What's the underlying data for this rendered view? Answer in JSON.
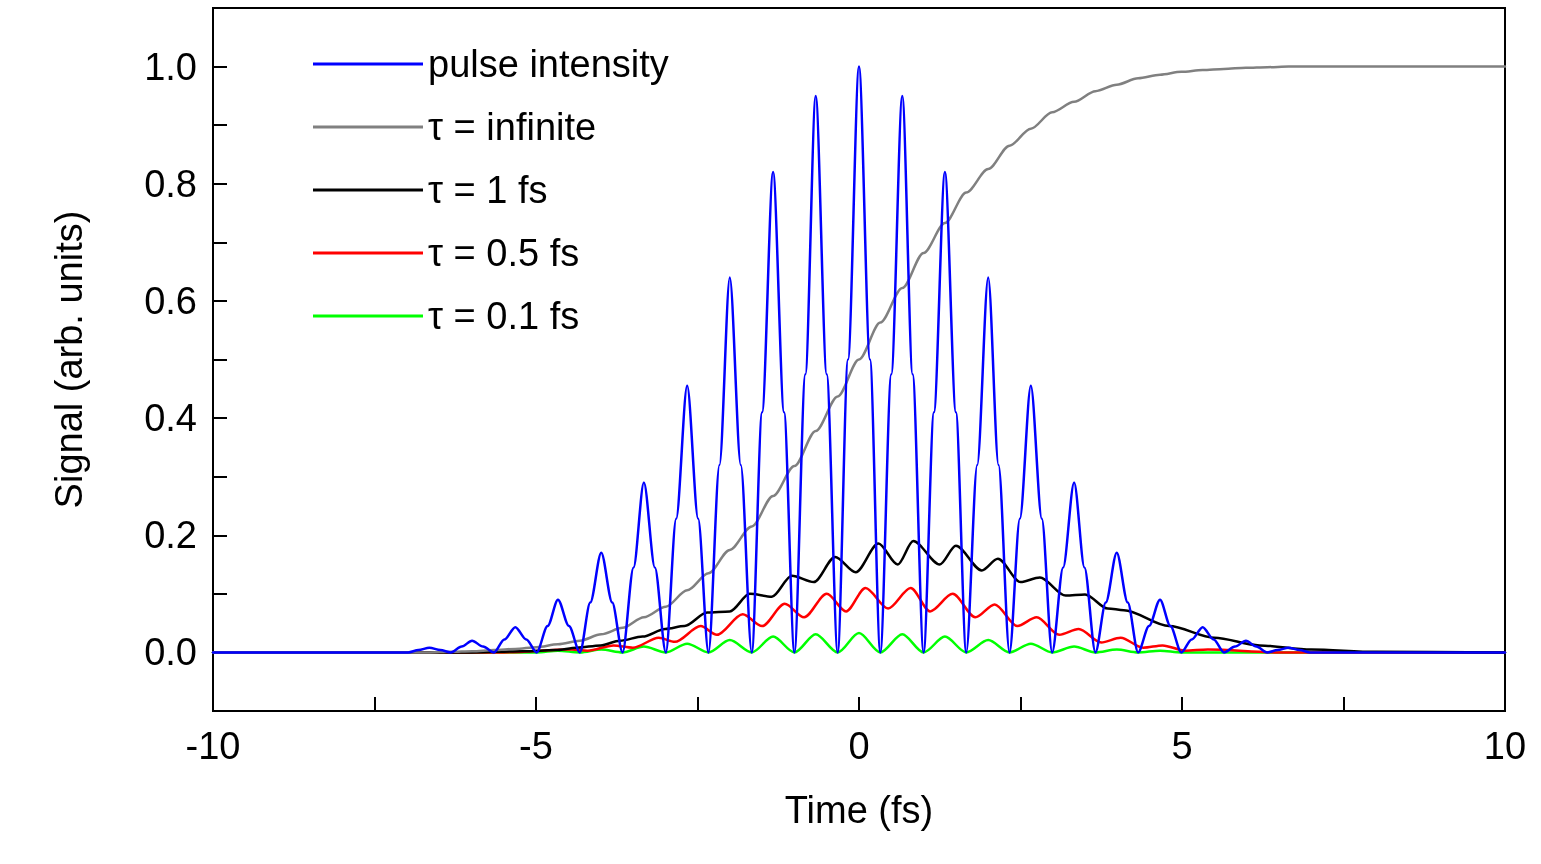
{
  "chart_data": {
    "type": "line",
    "xlabel": "Time (fs)",
    "ylabel": "Signal (arb. units)",
    "xlim": [
      -10,
      10
    ],
    "ylim": [
      -0.1,
      1.1
    ],
    "xticks": [
      -10,
      {
        "value": -7.5,
        "label": null
      },
      -5,
      {
        "value": -2.5,
        "label": null
      },
      0,
      {
        "value": 2.5,
        "label": null
      },
      5,
      {
        "value": 7.5,
        "label": null
      },
      10
    ],
    "yticks": [
      {
        "value": 0,
        "label": "0.0"
      },
      {
        "value": 0.1,
        "label": null
      },
      {
        "value": 0.2,
        "label": "0.2"
      },
      {
        "value": 0.3,
        "label": null
      },
      {
        "value": 0.4,
        "label": "0.4"
      },
      {
        "value": 0.5,
        "label": null
      },
      {
        "value": 0.6,
        "label": "0.6"
      },
      {
        "value": 0.7,
        "label": null
      },
      {
        "value": 0.8,
        "label": "0.8"
      },
      {
        "value": 0.9,
        "label": null
      },
      {
        "value": 1.0,
        "label": "1.0"
      }
    ],
    "grid": false,
    "legend": "top left",
    "marker": "none",
    "line_style": "solid",
    "series": [
      {
        "name": "pulse intensity",
        "color": "#0000ff",
        "x": [
          -10,
          -6.98,
          -6.82,
          -6.65,
          -6.48,
          -6.32,
          -6.15,
          -5.99,
          -5.82,
          -5.65,
          -5.49,
          -5.32,
          -5.15,
          -4.99,
          -4.82,
          -4.66,
          -4.49,
          -4.32,
          -4.16,
          -3.99,
          -3.82,
          -3.66,
          -3.49,
          -3.33,
          -3.16,
          -2.99,
          -2.83,
          -2.66,
          -2.49,
          -2.33,
          -2.16,
          -2.0,
          -1.83,
          -1.66,
          -1.5,
          -1.33,
          -1.16,
          -1.0,
          -0.83,
          -0.67,
          -0.5,
          -0.33,
          -0.17,
          0,
          0.17,
          0.33,
          0.5,
          0.67,
          0.83,
          1.0,
          1.16,
          1.33,
          1.5,
          1.66,
          1.83,
          2.0,
          2.16,
          2.33,
          2.49,
          2.66,
          2.83,
          2.99,
          3.16,
          3.33,
          3.49,
          3.66,
          3.82,
          3.99,
          4.16,
          4.32,
          4.49,
          4.66,
          4.82,
          4.99,
          5.15,
          5.32,
          5.49,
          5.65,
          5.82,
          5.99,
          6.15,
          6.32,
          6.48,
          6.65,
          6.82,
          6.98,
          10
        ],
        "values": [
          0,
          0,
          0.004,
          0.008,
          0.004,
          0,
          0.01,
          0.02,
          0.01,
          0,
          0.022,
          0.043,
          0.022,
          0,
          0.045,
          0.09,
          0.045,
          0,
          0.085,
          0.17,
          0.085,
          0,
          0.145,
          0.29,
          0.145,
          0,
          0.228,
          0.455,
          0.228,
          0,
          0.32,
          0.64,
          0.32,
          0,
          0.41,
          0.82,
          0.41,
          0,
          0.475,
          0.95,
          0.475,
          0,
          0.5,
          1.0,
          0.5,
          0,
          0.475,
          0.95,
          0.475,
          0,
          0.41,
          0.82,
          0.41,
          0,
          0.32,
          0.64,
          0.32,
          0,
          0.228,
          0.455,
          0.228,
          0,
          0.145,
          0.29,
          0.145,
          0,
          0.085,
          0.17,
          0.085,
          0,
          0.045,
          0.09,
          0.045,
          0,
          0.022,
          0.043,
          0.022,
          0,
          0.01,
          0.02,
          0.01,
          0,
          0.004,
          0.008,
          0.004,
          0,
          0
        ]
      },
      {
        "name": "τ = infinite",
        "color": "#808080",
        "x": [
          -10,
          -6.98,
          -6.65,
          -6.32,
          -5.99,
          -5.65,
          -5.32,
          -4.99,
          -4.66,
          -4.32,
          -3.99,
          -3.66,
          -3.33,
          -2.99,
          -2.66,
          -2.33,
          -2.0,
          -1.66,
          -1.33,
          -1.0,
          -0.67,
          -0.33,
          0,
          0.33,
          0.67,
          1.0,
          1.33,
          1.66,
          2.0,
          2.33,
          2.66,
          2.99,
          3.33,
          3.66,
          3.99,
          4.32,
          4.66,
          4.99,
          5.32,
          5.65,
          5.99,
          6.32,
          6.65,
          6.98,
          10
        ],
        "values": [
          0,
          0,
          0,
          0.001,
          0.002,
          0.004,
          0.006,
          0.009,
          0.014,
          0.02,
          0.031,
          0.042,
          0.06,
          0.078,
          0.106,
          0.135,
          0.175,
          0.215,
          0.267,
          0.318,
          0.378,
          0.437,
          0.5,
          0.563,
          0.622,
          0.682,
          0.733,
          0.785,
          0.825,
          0.865,
          0.894,
          0.922,
          0.94,
          0.958,
          0.969,
          0.98,
          0.986,
          0.991,
          0.994,
          0.996,
          0.998,
          0.999,
          1.0,
          1.0,
          1.0
        ]
      },
      {
        "name": "τ = 1 fs",
        "color": "#000000",
        "x": [
          -10,
          -6,
          -5.2,
          -4.7,
          -4.37,
          -4.0,
          -3.7,
          -3.35,
          -3.0,
          -2.7,
          -2.35,
          -2.0,
          -1.69,
          -1.35,
          -1.04,
          -0.7,
          -0.37,
          -0.05,
          0.3,
          0.6,
          0.84,
          1.25,
          1.5,
          1.9,
          2.15,
          2.5,
          2.8,
          3.2,
          3.5,
          3.85,
          4.1,
          4.8,
          5.5,
          6.2,
          7,
          8,
          10
        ],
        "values": [
          0,
          0,
          0.002,
          0.004,
          0.008,
          0.012,
          0.02,
          0.027,
          0.04,
          0.045,
          0.068,
          0.07,
          0.1,
          0.095,
          0.131,
          0.12,
          0.163,
          0.137,
          0.186,
          0.15,
          0.19,
          0.15,
          0.182,
          0.14,
          0.16,
          0.12,
          0.128,
          0.097,
          0.099,
          0.075,
          0.072,
          0.045,
          0.025,
          0.012,
          0.005,
          0.001,
          0
        ]
      },
      {
        "name": "τ = 0.5 fs",
        "color": "#ff0000",
        "x": [
          -10,
          -5.5,
          -4.45,
          -4.2,
          -3.8,
          -3.5,
          -3.1,
          -2.85,
          -2.45,
          -2.2,
          -1.8,
          -1.5,
          -1.15,
          -0.85,
          -0.5,
          -0.2,
          0.1,
          0.45,
          0.8,
          1.1,
          1.45,
          1.8,
          2.1,
          2.45,
          2.75,
          3.1,
          3.4,
          3.75,
          4.05,
          4.4,
          4.7,
          5.05,
          5.4,
          6.5,
          10
        ],
        "values": [
          0,
          0,
          0.005,
          0.003,
          0.012,
          0.008,
          0.025,
          0.018,
          0.045,
          0.03,
          0.065,
          0.045,
          0.083,
          0.06,
          0.1,
          0.07,
          0.11,
          0.075,
          0.11,
          0.07,
          0.1,
          0.06,
          0.082,
          0.045,
          0.06,
          0.03,
          0.04,
          0.017,
          0.025,
          0.008,
          0.012,
          0.003,
          0.005,
          0,
          0
        ]
      },
      {
        "name": "τ = 0.1 fs",
        "color": "#00ff00",
        "x": [
          -10,
          -4.99,
          -4.66,
          -4.32,
          -3.99,
          -3.66,
          -3.33,
          -2.99,
          -2.66,
          -2.33,
          -2.0,
          -1.66,
          -1.33,
          -1.0,
          -0.67,
          -0.33,
          0,
          0.33,
          0.67,
          1.0,
          1.33,
          1.66,
          2.0,
          2.33,
          2.66,
          2.99,
          3.33,
          3.66,
          3.99,
          4.32,
          4.66,
          4.99,
          10
        ],
        "values": [
          0,
          0,
          0.003,
          0,
          0.005,
          0,
          0.01,
          0,
          0.015,
          0,
          0.021,
          0,
          0.027,
          0,
          0.031,
          0,
          0.033,
          0,
          0.031,
          0,
          0.027,
          0,
          0.021,
          0,
          0.015,
          0,
          0.01,
          0,
          0.005,
          0,
          0.003,
          0,
          0
        ]
      }
    ]
  }
}
